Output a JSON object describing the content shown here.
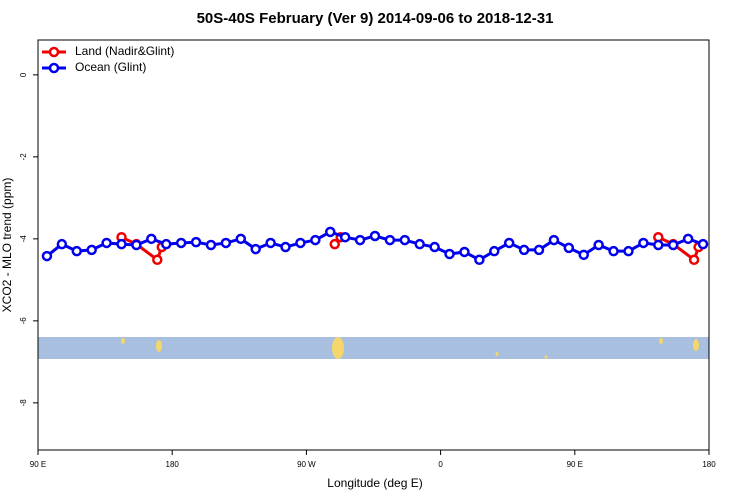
{
  "chart_data": {
    "type": "line",
    "title": "50S-40S February (Ver 9)   2014-09-06 to 2018-12-31",
    "xlabel": "Longitude (deg E)",
    "ylabel": "XCO2 - MLO trend (ppm)",
    "xlim": [
      90,
      540
    ],
    "xticks": [
      {
        "value": 90,
        "label": "90 E"
      },
      {
        "value": 180,
        "label": "180"
      },
      {
        "value": 270,
        "label": "90 W"
      },
      {
        "value": 360,
        "label": "0"
      },
      {
        "value": 450,
        "label": "90 E"
      },
      {
        "value": 540,
        "label": "180"
      }
    ],
    "ylim": [
      -9.15,
      0.85
    ],
    "yticks": [
      0,
      -2,
      -4,
      -6,
      -8
    ],
    "legend": "topleft",
    "series": [
      {
        "name": "Land (Nadir&Glint)",
        "color": "#ee0000",
        "x": [
          146,
          156,
          170,
          173,
          null,
          289,
          293,
          null,
          506,
          516,
          530,
          533
        ],
        "values": [
          -3.96,
          -4.13,
          -4.51,
          -4.2,
          null,
          -4.13,
          -3.96,
          null,
          -3.96,
          -4.13,
          -4.51,
          -4.2
        ]
      },
      {
        "name": "Ocean (Glint)",
        "color": "#0000ee",
        "x": [
          96,
          106,
          116,
          126,
          136,
          146,
          156,
          166,
          176,
          186,
          196,
          206,
          216,
          226,
          236,
          246,
          256,
          266,
          276,
          286,
          296,
          306,
          316,
          326,
          336,
          346,
          356,
          366,
          376,
          386,
          396,
          406,
          416,
          426,
          436,
          446,
          456,
          466,
          476,
          486,
          496,
          506,
          516,
          526,
          536
        ],
        "values": [
          -4.42,
          -4.13,
          -4.3,
          -4.27,
          -4.1,
          -4.13,
          -4.15,
          -4.0,
          -4.13,
          -4.1,
          -4.08,
          -4.15,
          -4.1,
          -4.0,
          -4.25,
          -4.1,
          -4.2,
          -4.1,
          -4.03,
          -3.83,
          -3.96,
          -4.03,
          -3.93,
          -4.03,
          -4.03,
          -4.13,
          -4.2,
          -4.37,
          -4.32,
          -4.51,
          -4.3,
          -4.1,
          -4.27,
          -4.27,
          -4.03,
          -4.22,
          -4.39,
          -4.15,
          -4.3,
          -4.3,
          -4.1,
          -4.15,
          -4.15,
          -4.0,
          -4.13
        ]
      }
    ]
  }
}
